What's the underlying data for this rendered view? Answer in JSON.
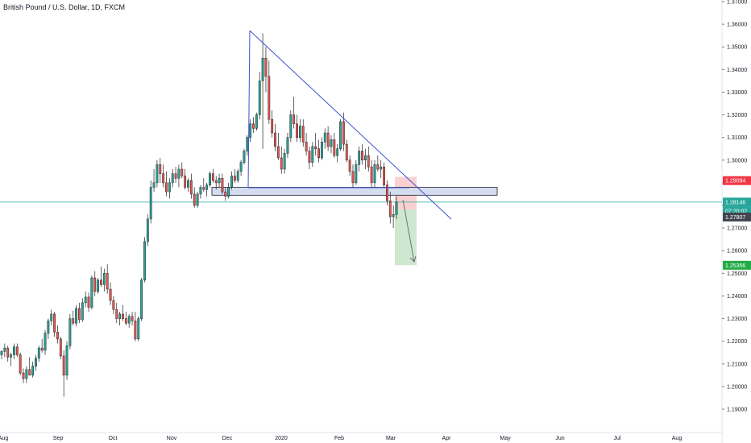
{
  "header": {
    "title": "British Pound / U.S. Dollar, 1D, FXCM"
  },
  "colors": {
    "up": "#26a69a",
    "down": "#ef5350",
    "trendline": "#3f51d0",
    "support_fill": "#d4dcef",
    "support_stroke": "#1a1a2e",
    "stop_zone": "#f8c9c9",
    "target_zone": "#c8e6c9",
    "price_line": "#26a69a"
  },
  "chart_data": {
    "type": "candlestick",
    "title": "British Pound / U.S. Dollar, 1D, FXCM",
    "symbol": "GBPUSD",
    "timeframe": "1D",
    "ylim": [
      1.185,
      1.37
    ],
    "y_ticks": [
      "1.37000",
      "1.36000",
      "1.35000",
      "1.34000",
      "1.33000",
      "1.32000",
      "1.31000",
      "1.30000",
      "1.29000",
      "1.28000",
      "1.27000",
      "1.26000",
      "1.25000",
      "1.24000",
      "1.23000",
      "1.22000",
      "1.21000",
      "1.20000",
      "1.19000"
    ],
    "x_ticks": [
      "Aug",
      "Sep",
      "Oct",
      "Nov",
      "Dec",
      "2020",
      "Feb",
      "Mar",
      "Apr",
      "May",
      "Jun",
      "Jul",
      "Aug"
    ],
    "price_tags": [
      {
        "label": "1.29094",
        "value": 1.29094,
        "role": "stop"
      },
      {
        "label": "1.28146",
        "value": 1.28146,
        "role": "last"
      },
      {
        "label": "07:20:02",
        "role": "countdown"
      },
      {
        "label": "1.27807",
        "value": 1.27807,
        "role": "entry"
      },
      {
        "label": "1.25356",
        "value": 1.25356,
        "role": "target"
      }
    ],
    "candles": [
      [
        1.214,
        1.216,
        1.212,
        1.2155
      ],
      [
        1.2155,
        1.219,
        1.213,
        1.217
      ],
      [
        1.217,
        1.218,
        1.211,
        1.213
      ],
      [
        1.213,
        1.215,
        1.209,
        1.214
      ],
      [
        1.214,
        1.219,
        1.212,
        1.2175
      ],
      [
        1.2175,
        1.219,
        1.213,
        1.214
      ],
      [
        1.214,
        1.215,
        1.205,
        1.206
      ],
      [
        1.206,
        1.208,
        1.2015,
        1.2035
      ],
      [
        1.2035,
        1.209,
        1.2015,
        1.2075
      ],
      [
        1.2075,
        1.213,
        1.206,
        1.205
      ],
      [
        1.205,
        1.211,
        1.204,
        1.209
      ],
      [
        1.209,
        1.214,
        1.207,
        1.2125
      ],
      [
        1.2125,
        1.218,
        1.211,
        1.217
      ],
      [
        1.217,
        1.221,
        1.215,
        1.216
      ],
      [
        1.216,
        1.225,
        1.214,
        1.2235
      ],
      [
        1.2235,
        1.23,
        1.221,
        1.229
      ],
      [
        1.229,
        1.234,
        1.227,
        1.232
      ],
      [
        1.232,
        1.233,
        1.222,
        1.224
      ],
      [
        1.224,
        1.227,
        1.219,
        1.221
      ],
      [
        1.221,
        1.222,
        1.212,
        1.2135
      ],
      [
        1.2135,
        1.216,
        1.1955,
        1.205
      ],
      [
        1.205,
        1.22,
        1.203,
        1.218
      ],
      [
        1.218,
        1.232,
        1.2165,
        1.23
      ],
      [
        1.23,
        1.2335,
        1.227,
        1.228
      ],
      [
        1.228,
        1.236,
        1.2265,
        1.2345
      ],
      [
        1.2345,
        1.237,
        1.228,
        1.2295
      ],
      [
        1.2295,
        1.239,
        1.2285,
        1.237
      ],
      [
        1.237,
        1.242,
        1.235,
        1.2395
      ],
      [
        1.2395,
        1.2415,
        1.233,
        1.235
      ],
      [
        1.235,
        1.249,
        1.234,
        1.248
      ],
      [
        1.248,
        1.251,
        1.24,
        1.242
      ],
      [
        1.242,
        1.248,
        1.241,
        1.247
      ],
      [
        1.247,
        1.253,
        1.244,
        1.245
      ],
      [
        1.245,
        1.252,
        1.242,
        1.25
      ],
      [
        1.25,
        1.254,
        1.241,
        1.243
      ],
      [
        1.243,
        1.246,
        1.236,
        1.238
      ],
      [
        1.238,
        1.24,
        1.232,
        1.234
      ],
      [
        1.234,
        1.237,
        1.228,
        1.23
      ],
      [
        1.23,
        1.233,
        1.227,
        1.232
      ],
      [
        1.232,
        1.236,
        1.229,
        1.23
      ],
      [
        1.23,
        1.233,
        1.227,
        1.228
      ],
      [
        1.228,
        1.232,
        1.226,
        1.231
      ],
      [
        1.231,
        1.233,
        1.227,
        1.229
      ],
      [
        1.229,
        1.233,
        1.22,
        1.221
      ],
      [
        1.221,
        1.231,
        1.22,
        1.23
      ],
      [
        1.23,
        1.248,
        1.229,
        1.247
      ],
      [
        1.247,
        1.266,
        1.246,
        1.264
      ],
      [
        1.264,
        1.276,
        1.262,
        1.274
      ],
      [
        1.274,
        1.291,
        1.272,
        1.288
      ],
      [
        1.288,
        1.296,
        1.286,
        1.29
      ],
      [
        1.29,
        1.3,
        1.288,
        1.298
      ],
      [
        1.298,
        1.301,
        1.29,
        1.294
      ],
      [
        1.294,
        1.298,
        1.288,
        1.29
      ],
      [
        1.29,
        1.295,
        1.284,
        1.286
      ],
      [
        1.286,
        1.292,
        1.283,
        1.29
      ],
      [
        1.29,
        1.296,
        1.288,
        1.294
      ],
      [
        1.294,
        1.297,
        1.29,
        1.292
      ],
      [
        1.292,
        1.298,
        1.288,
        1.296
      ],
      [
        1.296,
        1.299,
        1.292,
        1.293
      ],
      [
        1.293,
        1.296,
        1.287,
        1.288
      ],
      [
        1.288,
        1.292,
        1.286,
        1.291
      ],
      [
        1.291,
        1.294,
        1.283,
        1.285
      ],
      [
        1.285,
        1.288,
        1.279,
        1.28
      ],
      [
        1.28,
        1.286,
        1.279,
        1.285
      ],
      [
        1.285,
        1.289,
        1.283,
        1.288
      ],
      [
        1.288,
        1.292,
        1.286,
        1.287
      ],
      [
        1.287,
        1.29,
        1.284,
        1.289
      ],
      [
        1.289,
        1.295,
        1.288,
        1.294
      ],
      [
        1.294,
        1.296,
        1.29,
        1.291
      ],
      [
        1.291,
        1.293,
        1.287,
        1.29
      ],
      [
        1.29,
        1.294,
        1.288,
        1.292
      ],
      [
        1.292,
        1.294,
        1.285,
        1.286
      ],
      [
        1.286,
        1.288,
        1.282,
        1.284
      ],
      [
        1.284,
        1.29,
        1.283,
        1.288
      ],
      [
        1.288,
        1.295,
        1.287,
        1.293
      ],
      [
        1.293,
        1.296,
        1.29,
        1.291
      ],
      [
        1.291,
        1.296,
        1.29,
        1.295
      ],
      [
        1.295,
        1.3,
        1.293,
        1.299
      ],
      [
        1.299,
        1.305,
        1.298,
        1.304
      ],
      [
        1.304,
        1.311,
        1.302,
        1.31
      ],
      [
        1.31,
        1.318,
        1.308,
        1.316
      ],
      [
        1.316,
        1.319,
        1.312,
        1.314
      ],
      [
        1.314,
        1.321,
        1.313,
        1.32
      ],
      [
        1.32,
        1.339,
        1.318,
        1.335
      ],
      [
        1.335,
        1.356,
        1.305,
        1.345
      ],
      [
        1.345,
        1.35,
        1.33,
        1.337
      ],
      [
        1.337,
        1.344,
        1.316,
        1.318
      ],
      [
        1.318,
        1.322,
        1.31,
        1.312
      ],
      [
        1.312,
        1.316,
        1.304,
        1.306
      ],
      [
        1.306,
        1.312,
        1.3,
        1.301
      ],
      [
        1.301,
        1.306,
        1.294,
        1.296
      ],
      [
        1.296,
        1.305,
        1.294,
        1.303
      ],
      [
        1.303,
        1.312,
        1.301,
        1.31
      ],
      [
        1.31,
        1.322,
        1.308,
        1.32
      ],
      [
        1.32,
        1.328,
        1.314,
        1.316
      ],
      [
        1.316,
        1.32,
        1.308,
        1.31
      ],
      [
        1.31,
        1.318,
        1.308,
        1.315
      ],
      [
        1.315,
        1.318,
        1.306,
        1.308
      ],
      [
        1.308,
        1.312,
        1.302,
        1.304
      ],
      [
        1.304,
        1.306,
        1.296,
        1.299
      ],
      [
        1.299,
        1.308,
        1.297,
        1.306
      ],
      [
        1.306,
        1.312,
        1.302,
        1.305
      ],
      [
        1.305,
        1.309,
        1.299,
        1.301
      ],
      [
        1.301,
        1.31,
        1.3,
        1.308
      ],
      [
        1.308,
        1.314,
        1.305,
        1.312
      ],
      [
        1.312,
        1.315,
        1.304,
        1.306
      ],
      [
        1.306,
        1.311,
        1.303,
        1.309
      ],
      [
        1.309,
        1.312,
        1.301,
        1.302
      ],
      [
        1.302,
        1.307,
        1.299,
        1.305
      ],
      [
        1.305,
        1.318,
        1.304,
        1.317
      ],
      [
        1.317,
        1.321,
        1.304,
        1.307
      ],
      [
        1.307,
        1.309,
        1.299,
        1.3
      ],
      [
        1.3,
        1.302,
        1.293,
        1.295
      ],
      [
        1.295,
        1.298,
        1.288,
        1.29
      ],
      [
        1.29,
        1.3,
        1.289,
        1.298
      ],
      [
        1.298,
        1.306,
        1.295,
        1.304
      ],
      [
        1.304,
        1.307,
        1.298,
        1.3
      ],
      [
        1.3,
        1.305,
        1.296,
        1.302
      ],
      [
        1.302,
        1.306,
        1.295,
        1.297
      ],
      [
        1.297,
        1.3,
        1.288,
        1.29
      ],
      [
        1.29,
        1.3,
        1.288,
        1.298
      ],
      [
        1.298,
        1.302,
        1.295,
        1.296
      ],
      [
        1.296,
        1.3,
        1.292,
        1.297
      ],
      [
        1.297,
        1.299,
        1.288,
        1.289
      ],
      [
        1.289,
        1.291,
        1.28,
        1.282
      ],
      [
        1.282,
        1.286,
        1.272,
        1.275
      ],
      [
        1.275,
        1.28,
        1.27,
        1.276
      ],
      [
        1.276,
        1.284,
        1.274,
        1.2815
      ]
    ]
  }
}
